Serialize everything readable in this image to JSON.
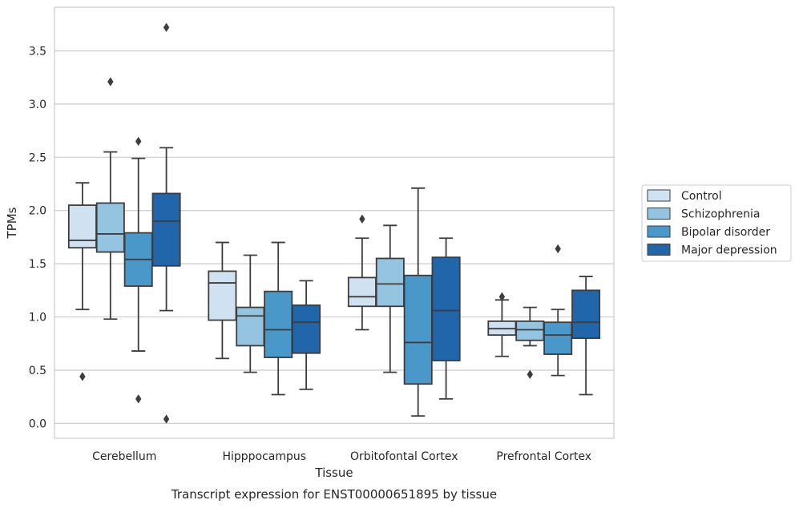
{
  "caption": "Transcript expression for ENST00000651895 by tissue",
  "chart_data": {
    "type": "box",
    "xlabel": "Tissue",
    "ylabel": "TPMs",
    "ylim": [
      -0.14,
      3.91
    ],
    "yticks": [
      0.0,
      0.5,
      1.0,
      1.5,
      2.0,
      2.5,
      3.0,
      3.5
    ],
    "ytick_labels": [
      "0.0",
      "0.5",
      "1.0",
      "1.5",
      "2.0",
      "2.5",
      "3.0",
      "3.5"
    ],
    "grid": "horizontal",
    "legend_position": "right",
    "categories": [
      "Cerebellum",
      "Hipppocampus",
      "Orbitofontal Cortex",
      "Prefrontal Cortex"
    ],
    "series": [
      {
        "name": "Control",
        "color": "#d0e1f2",
        "boxes": [
          {
            "whislo": 1.07,
            "q1": 1.65,
            "median": 1.72,
            "q3": 2.05,
            "whishi": 2.26,
            "fliers": [
              0.44
            ]
          },
          {
            "whislo": 0.61,
            "q1": 0.97,
            "median": 1.32,
            "q3": 1.43,
            "whishi": 1.7,
            "fliers": []
          },
          {
            "whislo": 0.88,
            "q1": 1.1,
            "median": 1.19,
            "q3": 1.37,
            "whishi": 1.74,
            "fliers": [
              1.92
            ]
          },
          {
            "whislo": 0.63,
            "q1": 0.83,
            "median": 0.89,
            "q3": 0.96,
            "whishi": 1.16,
            "fliers": [
              1.19
            ]
          }
        ]
      },
      {
        "name": "Schizophrenia",
        "color": "#94c4df",
        "boxes": [
          {
            "whislo": 0.98,
            "q1": 1.61,
            "median": 1.78,
            "q3": 2.07,
            "whishi": 2.55,
            "fliers": [
              3.21
            ]
          },
          {
            "whislo": 0.48,
            "q1": 0.73,
            "median": 1.01,
            "q3": 1.09,
            "whishi": 1.58,
            "fliers": []
          },
          {
            "whislo": 0.48,
            "q1": 1.1,
            "median": 1.31,
            "q3": 1.55,
            "whishi": 1.86,
            "fliers": []
          },
          {
            "whislo": 0.73,
            "q1": 0.78,
            "median": 0.88,
            "q3": 0.96,
            "whishi": 1.09,
            "fliers": [
              0.46
            ]
          }
        ]
      },
      {
        "name": "Bipolar disorder",
        "color": "#4a98c9",
        "boxes": [
          {
            "whislo": 0.68,
            "q1": 1.29,
            "median": 1.54,
            "q3": 1.79,
            "whishi": 2.49,
            "fliers": [
              2.65,
              0.23
            ]
          },
          {
            "whislo": 0.27,
            "q1": 0.62,
            "median": 0.88,
            "q3": 1.24,
            "whishi": 1.7,
            "fliers": []
          },
          {
            "whislo": 0.07,
            "q1": 0.37,
            "median": 0.76,
            "q3": 1.39,
            "whishi": 2.21,
            "fliers": []
          },
          {
            "whislo": 0.45,
            "q1": 0.65,
            "median": 0.83,
            "q3": 0.95,
            "whishi": 1.07,
            "fliers": [
              1.64
            ]
          }
        ]
      },
      {
        "name": "Major depression",
        "color": "#2165ab",
        "boxes": [
          {
            "whislo": 1.06,
            "q1": 1.48,
            "median": 1.9,
            "q3": 2.16,
            "whishi": 2.59,
            "fliers": [
              3.72,
              0.04
            ]
          },
          {
            "whislo": 0.32,
            "q1": 0.66,
            "median": 0.95,
            "q3": 1.11,
            "whishi": 1.34,
            "fliers": []
          },
          {
            "whislo": 0.23,
            "q1": 0.59,
            "median": 1.06,
            "q3": 1.56,
            "whishi": 1.74,
            "fliers": []
          },
          {
            "whislo": 0.27,
            "q1": 0.8,
            "median": 0.95,
            "q3": 1.25,
            "whishi": 1.38,
            "fliers": []
          }
        ]
      }
    ]
  }
}
